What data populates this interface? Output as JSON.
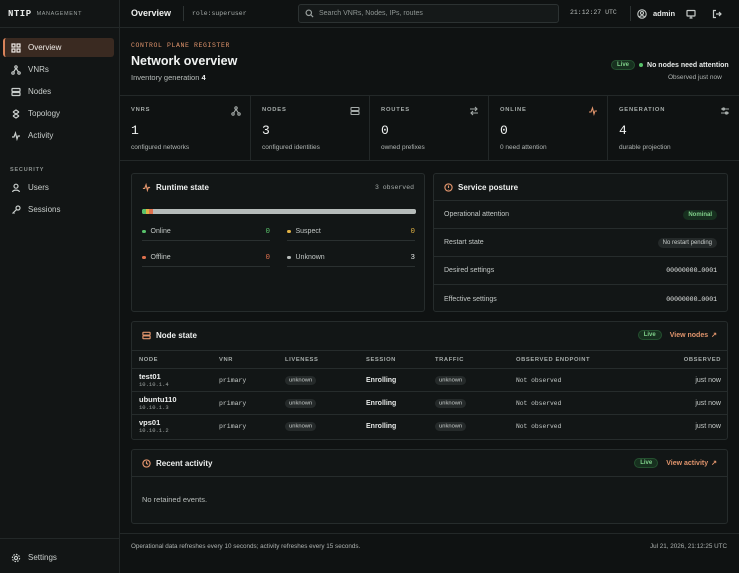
{
  "brand": {
    "name": "NTIP",
    "sub": "MANAGEMENT"
  },
  "sidebar": {
    "items": [
      {
        "label": "Overview",
        "icon": "grid-icon"
      },
      {
        "label": "VNRs",
        "icon": "network-icon"
      },
      {
        "label": "Nodes",
        "icon": "server-icon"
      },
      {
        "label": "Topology",
        "icon": "topology-icon"
      },
      {
        "label": "Activity",
        "icon": "activity-icon"
      }
    ],
    "security_label": "SECURITY",
    "security_items": [
      {
        "label": "Users",
        "icon": "user-icon"
      },
      {
        "label": "Sessions",
        "icon": "key-icon"
      }
    ],
    "settings_label": "Settings"
  },
  "topbar": {
    "title": "Overview",
    "role": "role:superuser",
    "search_placeholder": "Search VNRs, Nodes, IPs, routes",
    "time": "21:12:27 UTC",
    "user": "admin"
  },
  "header": {
    "eyebrow": "CONTROL PLANE REGISTER",
    "title": "Network overview",
    "inventory_label": "Inventory generation",
    "inventory_value": "4",
    "live": "Live",
    "status": "No nodes need attention",
    "observed": "Observed just now"
  },
  "stats": [
    {
      "label": "VNRS",
      "value": "1",
      "sub": "configured networks",
      "icon": "network-icon"
    },
    {
      "label": "NODES",
      "value": "3",
      "sub": "configured identities",
      "icon": "server-icon"
    },
    {
      "label": "ROUTES",
      "value": "0",
      "sub": "owned prefixes",
      "icon": "route-icon"
    },
    {
      "label": "ONLINE",
      "value": "0",
      "sub": "0 need attention",
      "icon": "pulse-icon"
    },
    {
      "label": "GENERATION",
      "value": "4",
      "sub": "durable projection",
      "icon": "sliders-icon"
    }
  ],
  "runtime": {
    "title": "Runtime state",
    "observed": "3 observed",
    "items": [
      {
        "label": "Online",
        "value": "0",
        "color": "#58c26a"
      },
      {
        "label": "Suspect",
        "value": "0",
        "color": "#e1b244"
      },
      {
        "label": "Offline",
        "value": "0",
        "color": "#e0714e"
      },
      {
        "label": "Unknown",
        "value": "3",
        "color": "#b5bbb9"
      }
    ]
  },
  "posture": {
    "title": "Service posture",
    "rows": [
      {
        "label": "Operational attention",
        "value": "Nominal"
      },
      {
        "label": "Restart state",
        "value": "No restart pending"
      },
      {
        "label": "Desired settings",
        "value": "00000000…0001"
      },
      {
        "label": "Effective settings",
        "value": "00000000…0001"
      }
    ]
  },
  "node_state": {
    "title": "Node state",
    "live": "Live",
    "view_link": "View nodes",
    "columns": [
      "NODE",
      "VNR",
      "LIVENESS",
      "SESSION",
      "TRAFFIC",
      "OBSERVED ENDPOINT",
      "OBSERVED"
    ],
    "rows": [
      {
        "name": "test01",
        "ip": "10.10.1.4",
        "vnr": "primary",
        "liveness": "unknown",
        "session": "Enrolling",
        "traffic": "unknown",
        "endpoint": "Not observed",
        "observed": "just now"
      },
      {
        "name": "ubuntu110",
        "ip": "10.10.1.3",
        "vnr": "primary",
        "liveness": "unknown",
        "session": "Enrolling",
        "traffic": "unknown",
        "endpoint": "Not observed",
        "observed": "just now"
      },
      {
        "name": "vps01",
        "ip": "10.10.1.2",
        "vnr": "primary",
        "liveness": "unknown",
        "session": "Enrolling",
        "traffic": "unknown",
        "endpoint": "Not observed",
        "observed": "just now"
      }
    ]
  },
  "activity": {
    "title": "Recent activity",
    "live": "Live",
    "view_link": "View activity",
    "empty": "No retained events."
  },
  "footer": {
    "left": "Operational data refreshes every 10 seconds; activity refreshes every 15 seconds.",
    "right": "Jul 21, 2026, 21:12:25 UTC"
  }
}
